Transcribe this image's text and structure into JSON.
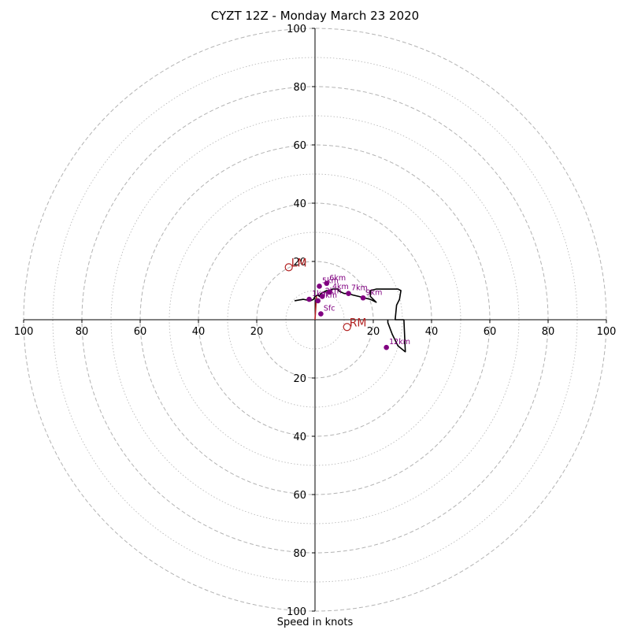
{
  "chart_data": {
    "type": "hodograph",
    "title": "CYZT 12Z - Monday March 23 2020",
    "xlabel": "Speed in knots",
    "ylabel": "",
    "xlim": [
      -100,
      100
    ],
    "ylim": [
      -100,
      100
    ],
    "grid": true,
    "ring_major_values": [
      20,
      40,
      60,
      80,
      100
    ],
    "ring_minor_values": [
      10,
      30,
      50,
      70,
      90
    ],
    "tick_values": [
      20,
      40,
      60,
      80,
      100
    ],
    "tick_labels": [
      "20",
      "40",
      "60",
      "80",
      "100"
    ],
    "hodograph_trace": [
      [
        -7,
        6.5
      ],
      [
        -4,
        7
      ],
      [
        -1.5,
        6.5
      ],
      [
        -0.5,
        7
      ],
      [
        0,
        8
      ],
      [
        1,
        8.5
      ],
      [
        1.5,
        8
      ],
      [
        2,
        9
      ],
      [
        3,
        9.5
      ],
      [
        4,
        10
      ],
      [
        5,
        10
      ],
      [
        6,
        10.5
      ],
      [
        7,
        10.5
      ],
      [
        8,
        10.5
      ],
      [
        8,
        10
      ],
      [
        9,
        9.5
      ],
      [
        10,
        9
      ],
      [
        11.5,
        9
      ],
      [
        13,
        8.5
      ],
      [
        15,
        8
      ],
      [
        17,
        7.5
      ],
      [
        19,
        7
      ],
      [
        21,
        6
      ],
      [
        19,
        8
      ],
      [
        19,
        10
      ],
      [
        21,
        10.5
      ],
      [
        25,
        10.5
      ],
      [
        28.5,
        10.5
      ],
      [
        29.5,
        10
      ],
      [
        29,
        7
      ],
      [
        28,
        5
      ],
      [
        27.5,
        0
      ],
      [
        30.5,
        0
      ],
      [
        31,
        -11
      ],
      [
        28.5,
        -9
      ],
      [
        26.5,
        -5
      ],
      [
        25,
        -1
      ],
      [
        25,
        0
      ]
    ],
    "height_markers": [
      {
        "label": "Sfc",
        "x": 2,
        "y": 2
      },
      {
        "label": "1km",
        "x": -2,
        "y": 7
      },
      {
        "label": "2km",
        "x": 2.5,
        "y": 8
      },
      {
        "label": "3km",
        "x": 1,
        "y": 6.5
      },
      {
        "label": "4km",
        "x": 5,
        "y": 9.5
      },
      {
        "label": "5km",
        "x": 1.5,
        "y": 11.5
      },
      {
        "label": "6km",
        "x": 4,
        "y": 12.5
      },
      {
        "label": "7km",
        "x": 11.5,
        "y": 9
      },
      {
        "label": "9km",
        "x": 16.5,
        "y": 7.5
      },
      {
        "label": "12km",
        "x": 24.5,
        "y": -9.5
      }
    ],
    "storm_motions": [
      {
        "label": "LM",
        "x": -9,
        "y": 18
      },
      {
        "label": "RM",
        "x": 11,
        "y": -2.5
      }
    ],
    "mean_wind_vector": {
      "x": 0.5,
      "y": 8
    },
    "colors": {
      "trace": "#000000",
      "markers": "#800080",
      "storm": "#b22222",
      "grid": "#b3b3b3"
    }
  }
}
